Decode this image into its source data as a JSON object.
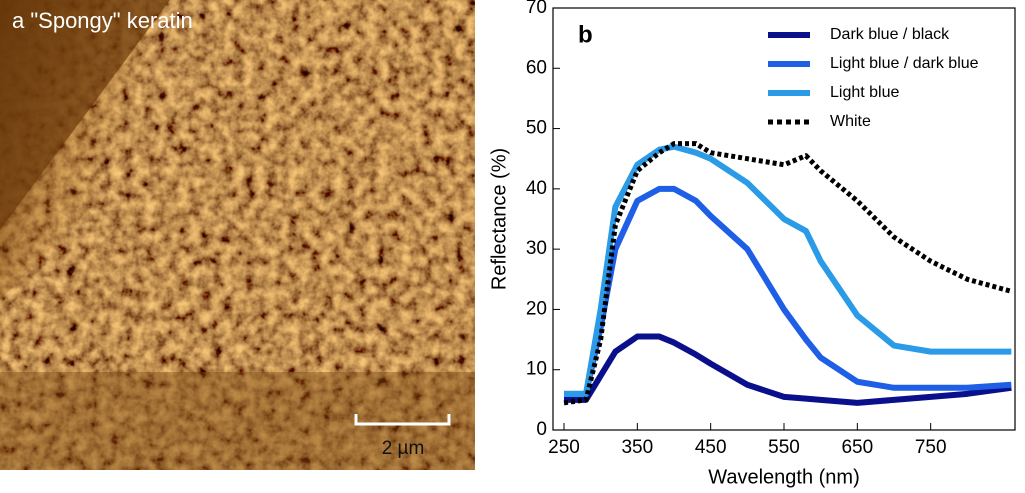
{
  "panel_a": {
    "label": "a \"Spongy\" keratin",
    "scale_bar": "2 µm"
  },
  "chart_data": {
    "type": "line",
    "panel_label": "b",
    "x_label": "Wavelength (nm)",
    "y_label": "Reflectance (%)",
    "x": [
      250,
      280,
      300,
      320,
      350,
      380,
      400,
      430,
      450,
      500,
      550,
      580,
      600,
      650,
      700,
      750,
      800,
      860
    ],
    "series": [
      {
        "name": "Dark blue / black",
        "color": "#0a0f8c",
        "style": "solid",
        "values": [
          5,
          5,
          9,
          13,
          15.5,
          15.5,
          14.5,
          12.5,
          11,
          7.5,
          5.5,
          5.2,
          5,
          4.5,
          5,
          5.5,
          6,
          7
        ]
      },
      {
        "name": "Light blue / dark blue",
        "color": "#1e5fe6",
        "style": "solid",
        "values": [
          6,
          6,
          17,
          30,
          38,
          40,
          40,
          38,
          35.5,
          30,
          20,
          15,
          12,
          8,
          7,
          7,
          7,
          7.5
        ]
      },
      {
        "name": "Light blue",
        "color": "#2b9be8",
        "style": "solid",
        "values": [
          6,
          6,
          20,
          37,
          44,
          46.5,
          47,
          46,
          45,
          41,
          35,
          33,
          28,
          19,
          14,
          13,
          13,
          13
        ]
      },
      {
        "name": "White",
        "color": "#000000",
        "style": "dotted",
        "values": [
          4.5,
          5,
          15,
          34,
          43,
          46,
          47.5,
          47.5,
          46,
          45,
          44,
          45.5,
          43,
          38,
          32,
          28,
          25,
          23
        ]
      }
    ],
    "xlim": [
      235,
      865
    ],
    "xticks": [
      250,
      350,
      450,
      550,
      650,
      750
    ],
    "ylim": [
      0,
      70
    ],
    "yticks": [
      0,
      10,
      20,
      30,
      40,
      50,
      60,
      70
    ]
  }
}
